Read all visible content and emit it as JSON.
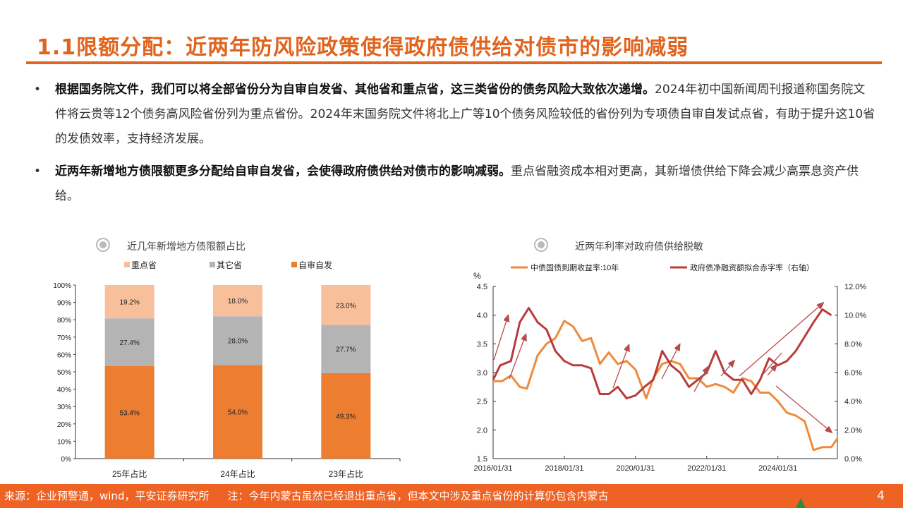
{
  "title": "1.1限额分配：近两年防风险政策使得政府债供给对债市的影响减弱",
  "bullets": [
    {
      "bold": "根据国务院文件，我们可以将全部省份分为自审自发省、其他省和重点省，这三类省份的债务风险大致依次递增。",
      "text": "2024年初中国新闻周刊报道称国务院文件将云贵等12个债务高风险省份列为重点省份。2024年末国务院文件将北上广等10个债务风险较低的省份列为专项债自审自发试点省，有助于提升这10省的发债效率，支持经济发展。"
    },
    {
      "bold": "近两年新增地方债限额更多分配给自审自发省，会使得政府债供给对债市的影响减弱。",
      "text": "重点省融资成本相对更高，其新增债供给下降会减少高票息资产供给。"
    }
  ],
  "bullet_symbol": "•",
  "footer": {
    "source": "来源：企业预警通，wind，平安证券研究所",
    "note": "注：今年内蒙古虽然已经退出重点省，但本文中涉及重点省份的计算仍包含内蒙古",
    "page": "4"
  },
  "chart_data": [
    {
      "type": "bar",
      "stacked": true,
      "title": "近几年新增地方债限额占比",
      "categories": [
        "25年占比",
        "24年占比",
        "23年占比"
      ],
      "series": [
        {
          "name": "自审自发",
          "color": "#ed7d31",
          "values": [
            53.4,
            54.0,
            49.3
          ],
          "labels": [
            "53.4%",
            "54.0%",
            "49.3%"
          ]
        },
        {
          "name": "其它省",
          "color": "#b4b4b4",
          "values": [
            27.4,
            28.0,
            27.7
          ],
          "labels": [
            "27.4%",
            "28.0%",
            "27.7%"
          ]
        },
        {
          "name": "重点省",
          "color": "#f8c09a",
          "values": [
            19.2,
            18.0,
            23.0
          ],
          "labels": [
            "19.2%",
            "18.0%",
            "23.0%"
          ]
        }
      ],
      "legend": [
        "重点省",
        "其它省",
        "自审自发"
      ],
      "yticks": [
        "0%",
        "10%",
        "20%",
        "30%",
        "40%",
        "50%",
        "60%",
        "70%",
        "80%",
        "90%",
        "100%"
      ],
      "ylim": [
        0,
        100
      ]
    },
    {
      "type": "line",
      "title": "近两年利率对政府债供给脱敏",
      "ylabel": "%",
      "ylim": [
        1.5,
        4.5
      ],
      "y2lim": [
        0,
        12
      ],
      "xlim": [
        2016.0,
        2025.67
      ],
      "yticks": [
        "1.5",
        "2.0",
        "2.5",
        "3.0",
        "3.5",
        "4.0",
        "4.5"
      ],
      "y2ticks": [
        "0.0%",
        "2.0%",
        "4.0%",
        "6.0%",
        "8.0%",
        "10.0%",
        "12.0%"
      ],
      "xticks": [
        {
          "x": 2016.0,
          "label": "2016/01/31"
        },
        {
          "x": 2018.0,
          "label": "2018/01/31"
        },
        {
          "x": 2020.0,
          "label": "2020/01/31"
        },
        {
          "x": 2022.0,
          "label": "2022/01/31"
        },
        {
          "x": 2024.0,
          "label": "2024/01/31"
        }
      ],
      "series": [
        {
          "name": "中债国债到期收益率:10年",
          "axis": "left",
          "color": "#ef8a3c",
          "x": [
            2016.0,
            2016.25,
            2016.5,
            2016.75,
            2016.95,
            2017.25,
            2017.5,
            2017.75,
            2018.0,
            2018.25,
            2018.5,
            2018.75,
            2019.0,
            2019.25,
            2019.5,
            2019.75,
            2020.0,
            2020.3,
            2020.5,
            2020.75,
            2021.0,
            2021.25,
            2021.5,
            2021.75,
            2022.0,
            2022.25,
            2022.5,
            2022.75,
            2023.0,
            2023.25,
            2023.5,
            2023.75,
            2024.0,
            2024.25,
            2024.5,
            2024.75,
            2025.0,
            2025.25,
            2025.5,
            2025.67
          ],
          "y": [
            2.85,
            2.85,
            2.95,
            2.75,
            2.72,
            3.3,
            3.5,
            3.6,
            3.9,
            3.8,
            3.55,
            3.6,
            3.15,
            3.35,
            3.15,
            3.2,
            3.05,
            2.55,
            2.9,
            3.15,
            3.2,
            3.15,
            2.9,
            2.9,
            2.75,
            2.8,
            2.75,
            2.65,
            2.9,
            2.85,
            2.65,
            2.65,
            2.5,
            2.3,
            2.25,
            2.15,
            1.65,
            1.7,
            1.7,
            1.85
          ]
        },
        {
          "name": "政府债净融资额拟合赤字率（右轴）",
          "axis": "right",
          "color": "#b83c3c",
          "x": [
            2016.0,
            2016.2,
            2016.5,
            2016.75,
            2017.0,
            2017.25,
            2017.5,
            2017.75,
            2018.0,
            2018.25,
            2018.5,
            2018.75,
            2019.0,
            2019.25,
            2019.5,
            2019.75,
            2020.0,
            2020.25,
            2020.5,
            2020.75,
            2021.0,
            2021.25,
            2021.5,
            2021.75,
            2022.0,
            2022.25,
            2022.5,
            2022.75,
            2023.0,
            2023.25,
            2023.5,
            2023.75,
            2024.0,
            2024.25,
            2024.5,
            2024.75,
            2025.0,
            2025.25,
            2025.5
          ],
          "y": [
            5.5,
            6.5,
            6.8,
            9.5,
            10.5,
            9.5,
            9.0,
            7.5,
            6.8,
            6.5,
            6.5,
            6.3,
            4.5,
            4.5,
            5.0,
            4.2,
            4.4,
            5.0,
            5.5,
            7.5,
            6.5,
            6.0,
            5.0,
            5.5,
            6.0,
            7.5,
            6.0,
            5.5,
            5.5,
            4.5,
            5.5,
            7.0,
            6.5,
            6.8,
            7.5,
            8.5,
            9.5,
            10.4,
            10.0
          ]
        }
      ],
      "annotations": "arrows"
    }
  ]
}
